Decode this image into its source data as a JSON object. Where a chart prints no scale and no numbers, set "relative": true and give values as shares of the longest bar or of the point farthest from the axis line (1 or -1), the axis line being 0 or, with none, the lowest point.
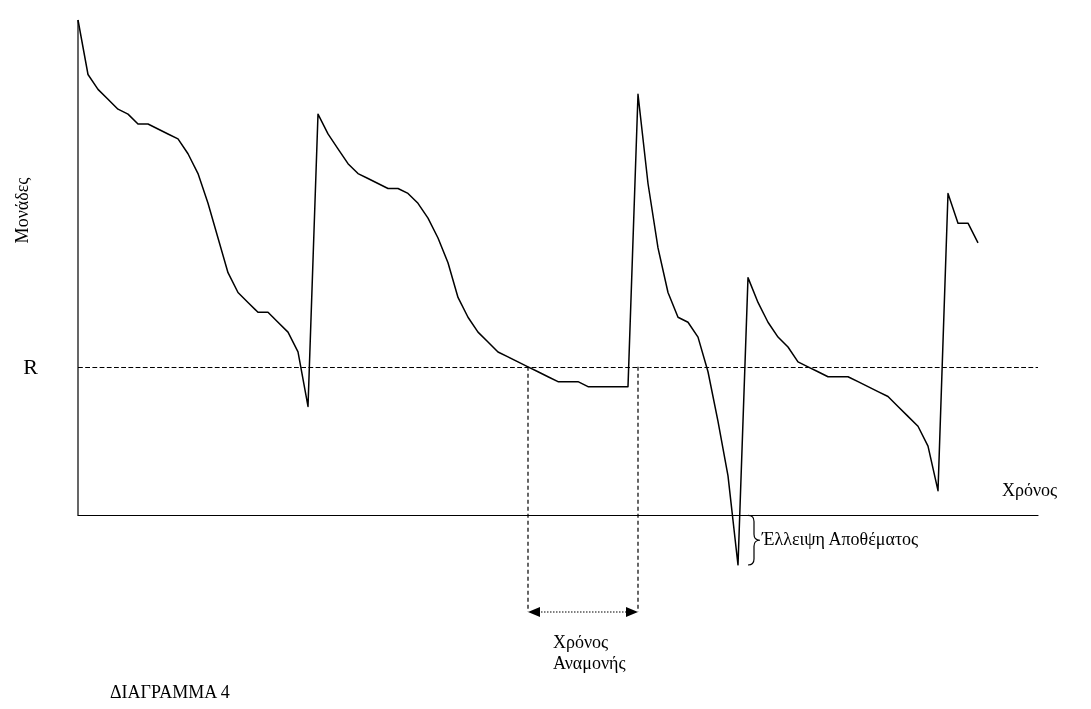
{
  "chart_data": {
    "type": "line",
    "relative": true,
    "ylabel": "Μονάδες",
    "xlabel": "Χρόνος",
    "categories": [
      null,
      null,
      null,
      null,
      null,
      null,
      null,
      null,
      null,
      null,
      null,
      null,
      null,
      null,
      null,
      null,
      null,
      null,
      null,
      null,
      null,
      null,
      null,
      null,
      null,
      null,
      null,
      null,
      null,
      null,
      null,
      null,
      null,
      null,
      null,
      null,
      null,
      null,
      null,
      null,
      null,
      null,
      null,
      null,
      null,
      null,
      null,
      null,
      null,
      null,
      null,
      null,
      null,
      null,
      null,
      null,
      null,
      null,
      null,
      null,
      null,
      null,
      null,
      null,
      null,
      null,
      null,
      null,
      null,
      null,
      null,
      null,
      null,
      null,
      null,
      null,
      null,
      null,
      null,
      null,
      null,
      null,
      null,
      null,
      null,
      null,
      null,
      null,
      null,
      null,
      null,
      null,
      null,
      null,
      null,
      null,
      null
    ],
    "series": [
      {
        "color": "#000000",
        "values": [
          1.0,
          0.89,
          0.86,
          0.84,
          0.82,
          0.81,
          0.79,
          0.79,
          0.78,
          0.77,
          0.76,
          0.73,
          0.69,
          0.63,
          0.56,
          0.49,
          0.45,
          0.43,
          0.41,
          0.41,
          0.39,
          0.37,
          0.33,
          0.22,
          0.81,
          0.77,
          0.74,
          0.71,
          0.69,
          0.68,
          0.67,
          0.66,
          0.66,
          0.65,
          0.63,
          0.6,
          0.56,
          0.51,
          0.44,
          0.4,
          0.37,
          0.35,
          0.33,
          0.32,
          0.31,
          0.3,
          0.29,
          0.28,
          0.27,
          0.27,
          0.27,
          0.26,
          0.26,
          0.26,
          0.26,
          0.26,
          0.85,
          0.67,
          0.54,
          0.45,
          0.4,
          0.39,
          0.36,
          0.29,
          0.19,
          0.08,
          -0.1,
          0.48,
          0.43,
          0.39,
          0.36,
          0.34,
          0.31,
          0.3,
          0.29,
          0.28,
          0.28,
          0.28,
          0.27,
          0.26,
          0.25,
          0.24,
          0.22,
          0.2,
          0.18,
          0.14,
          0.05,
          0.65,
          0.59,
          0.59,
          0.55,
          null,
          null,
          null,
          null,
          null,
          null
        ]
      }
    ],
    "ref_lines": [
      {
        "axis": "y",
        "value": 0.3,
        "label": "R",
        "color": "#000000",
        "line_style": "dashed"
      }
    ],
    "annotations": [
      "Έλλειψη Αποθέματος",
      "Χρόνος Αναμονής",
      "ΔΙΑΓΡΑΜΜΑ 4"
    ],
    "marker": "none",
    "line_style": "solid",
    "grid": false
  }
}
